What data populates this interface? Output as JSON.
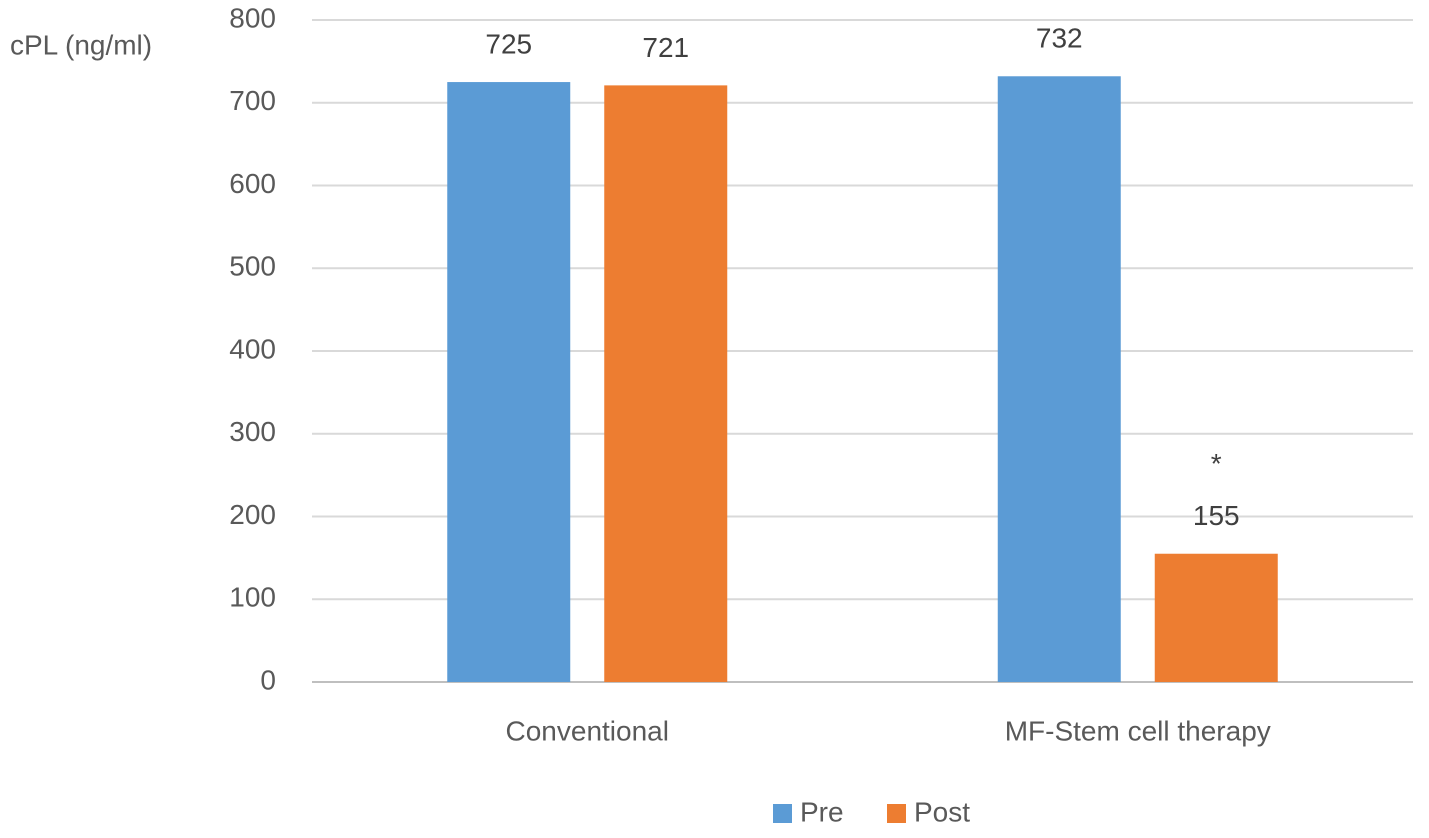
{
  "chart_data": {
    "type": "bar",
    "y_label": "cPL (ng/ml)",
    "categories": [
      "Conventional",
      "MF-Stem cell therapy"
    ],
    "series": [
      {
        "name": "Pre",
        "color": "#5b9bd5",
        "values": [
          725,
          732
        ]
      },
      {
        "name": "Post",
        "color": "#ed7d31",
        "values": [
          721,
          155
        ]
      }
    ],
    "annotation": "*",
    "ylim": [
      0,
      800
    ],
    "yticks": [
      0,
      100,
      200,
      300,
      400,
      500,
      600,
      700,
      800
    ],
    "grid": true,
    "legend": "bottom"
  }
}
